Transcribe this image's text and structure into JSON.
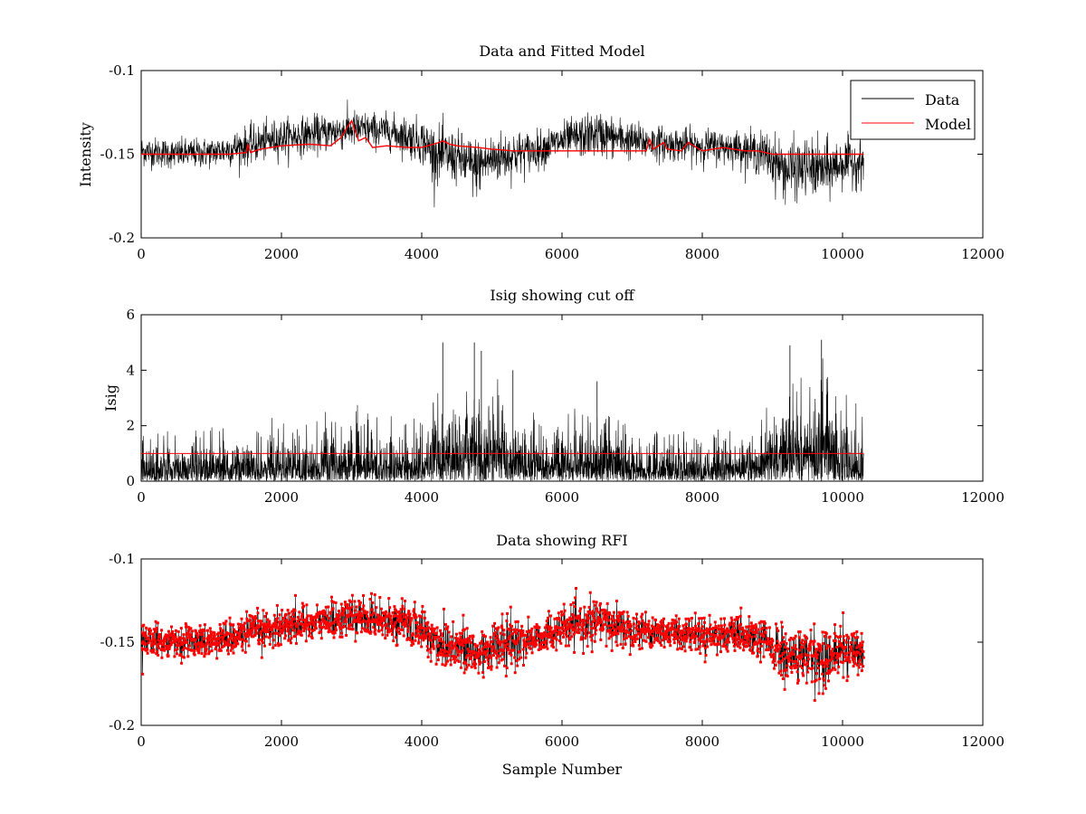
{
  "chart_data": [
    {
      "type": "line",
      "title": "Data and Fitted Model",
      "xlabel": "",
      "ylabel": "Intensity",
      "xlim": [
        0,
        12000
      ],
      "ylim": [
        -0.2,
        -0.1
      ],
      "xticks": [
        "0",
        "2000",
        "4000",
        "6000",
        "8000",
        "10000",
        "12000"
      ],
      "yticks": [
        "-0.2",
        "-0.15",
        "-0.1"
      ],
      "legend": {
        "placement": "top-right",
        "entries": [
          "Data",
          "Model"
        ]
      },
      "series": [
        {
          "name": "Data",
          "color": "#000000",
          "x": [
            0,
            500,
            1000,
            1500,
            2000,
            2500,
            3000,
            3500,
            4000,
            4200,
            4500,
            4750,
            5000,
            5300,
            5600,
            6000,
            6500,
            7000,
            7500,
            8000,
            8500,
            8900,
            9200,
            9500,
            9750,
            10000,
            10300
          ],
          "y": [
            -0.148,
            -0.15,
            -0.149,
            -0.145,
            -0.14,
            -0.138,
            -0.135,
            -0.136,
            -0.142,
            -0.15,
            -0.152,
            -0.158,
            -0.153,
            -0.15,
            -0.148,
            -0.142,
            -0.138,
            -0.142,
            -0.144,
            -0.145,
            -0.146,
            -0.15,
            -0.16,
            -0.158,
            -0.16,
            -0.155,
            -0.155
          ],
          "spread": [
            0.008,
            0.008,
            0.008,
            0.01,
            0.01,
            0.01,
            0.01,
            0.009,
            0.012,
            0.015,
            0.014,
            0.016,
            0.014,
            0.013,
            0.01,
            0.01,
            0.012,
            0.01,
            0.009,
            0.009,
            0.009,
            0.012,
            0.016,
            0.015,
            0.016,
            0.013,
            0.012
          ]
        },
        {
          "name": "Model",
          "color": "#ff0000",
          "x": [
            0,
            500,
            1000,
            1250,
            1500,
            1520,
            1560,
            1700,
            2000,
            2400,
            2700,
            2850,
            2950,
            3000,
            3100,
            3200,
            3300,
            3500,
            3800,
            4000,
            4250,
            4300,
            4400,
            4500,
            4800,
            5000,
            5300,
            5500,
            6000,
            6500,
            7000,
            7200,
            7250,
            7300,
            7450,
            7500,
            7700,
            7800,
            8000,
            8300,
            8600,
            8800,
            9000,
            9500,
            10000,
            10300
          ],
          "y": [
            -0.15,
            -0.15,
            -0.15,
            -0.15,
            -0.149,
            -0.144,
            -0.149,
            -0.147,
            -0.145,
            -0.144,
            -0.145,
            -0.14,
            -0.133,
            -0.13,
            -0.142,
            -0.14,
            -0.146,
            -0.145,
            -0.146,
            -0.146,
            -0.143,
            -0.142,
            -0.144,
            -0.145,
            -0.146,
            -0.147,
            -0.148,
            -0.148,
            -0.148,
            -0.148,
            -0.148,
            -0.148,
            -0.141,
            -0.147,
            -0.143,
            -0.147,
            -0.148,
            -0.143,
            -0.148,
            -0.146,
            -0.148,
            -0.148,
            -0.15,
            -0.15,
            -0.15,
            -0.15
          ]
        }
      ]
    },
    {
      "type": "line",
      "title": "Isig showing cut off",
      "xlabel": "",
      "ylabel": "Isig",
      "xlim": [
        0,
        12000
      ],
      "ylim": [
        0,
        6
      ],
      "xticks": [
        "0",
        "2000",
        "4000",
        "6000",
        "8000",
        "10000",
        "12000"
      ],
      "yticks": [
        "0",
        "2",
        "4",
        "6"
      ],
      "cutoff": 1,
      "series": [
        {
          "color": "#000000",
          "x": [
            0,
            1000,
            2000,
            3000,
            4000,
            4300,
            4700,
            5200,
            5600,
            6000,
            6500,
            7000,
            8000,
            8800,
            9200,
            9700,
            10300
          ],
          "envelope": [
            1.8,
            2.0,
            2.4,
            2.6,
            2.2,
            3.8,
            4.6,
            3.6,
            2.6,
            2.4,
            3.6,
            2.0,
            2.0,
            2.0,
            4.4,
            4.8,
            2.6
          ]
        },
        {
          "color": "#ff0000",
          "x": [
            0,
            10300
          ],
          "y": [
            1,
            1
          ]
        }
      ],
      "peaks": [
        {
          "x": 4300,
          "y": 5.0
        },
        {
          "x": 4750,
          "y": 5.0
        },
        {
          "x": 4850,
          "y": 4.7
        },
        {
          "x": 5300,
          "y": 4.0
        },
        {
          "x": 6500,
          "y": 3.6
        },
        {
          "x": 9250,
          "y": 4.9
        },
        {
          "x": 9700,
          "y": 5.1
        }
      ]
    },
    {
      "type": "scatter",
      "title": "Data showing RFI",
      "xlabel": "Sample Number",
      "ylabel": "",
      "xlim": [
        0,
        12000
      ],
      "ylim": [
        -0.2,
        -0.1
      ],
      "xticks": [
        "0",
        "2000",
        "4000",
        "6000",
        "8000",
        "10000",
        "12000"
      ],
      "yticks": [
        "-0.2",
        "-0.15",
        "-0.1"
      ],
      "series": [
        {
          "color": "#ff0000",
          "marker": "dot",
          "x": [
            0,
            500,
            1000,
            1500,
            2000,
            2500,
            3000,
            3500,
            4000,
            4200,
            4500,
            4750,
            5000,
            5300,
            5600,
            6000,
            6500,
            7000,
            7500,
            8000,
            8500,
            8900,
            9200,
            9500,
            9750,
            10000,
            10300
          ],
          "y": [
            -0.148,
            -0.15,
            -0.149,
            -0.145,
            -0.14,
            -0.138,
            -0.135,
            -0.136,
            -0.142,
            -0.15,
            -0.152,
            -0.158,
            -0.153,
            -0.15,
            -0.148,
            -0.142,
            -0.138,
            -0.142,
            -0.144,
            -0.145,
            -0.146,
            -0.15,
            -0.16,
            -0.158,
            -0.16,
            -0.155,
            -0.155
          ],
          "spread": [
            0.008,
            0.008,
            0.008,
            0.01,
            0.01,
            0.01,
            0.01,
            0.009,
            0.012,
            0.015,
            0.014,
            0.016,
            0.014,
            0.013,
            0.01,
            0.01,
            0.012,
            0.01,
            0.009,
            0.009,
            0.009,
            0.012,
            0.016,
            0.015,
            0.016,
            0.013,
            0.012
          ]
        }
      ]
    }
  ]
}
